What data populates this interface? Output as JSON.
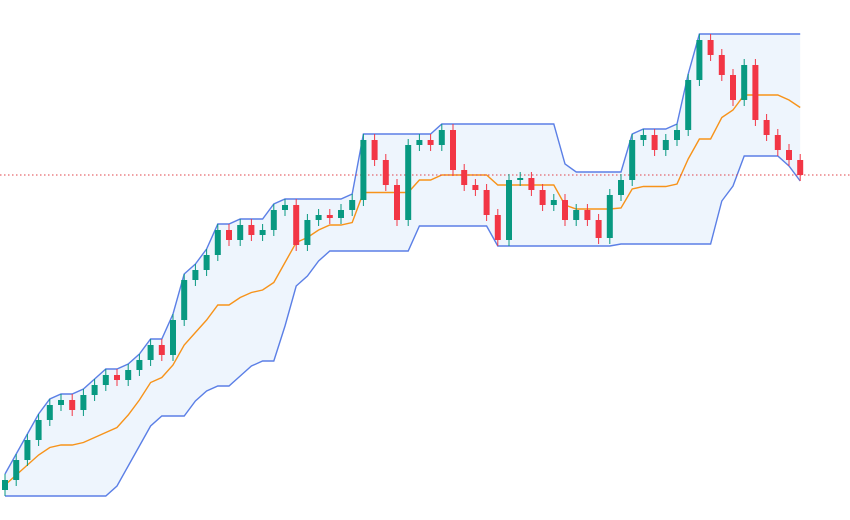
{
  "chart_data": {
    "type": "candlestick",
    "ylim": [
      0,
      520
    ],
    "open": [
      30,
      40,
      60,
      80,
      100,
      115,
      120,
      110,
      125,
      135,
      145,
      140,
      150,
      160,
      175,
      165,
      200,
      240,
      250,
      265,
      290,
      280,
      295,
      285,
      290,
      310,
      315,
      275,
      300,
      305,
      302,
      310,
      320,
      380,
      360,
      335,
      300,
      375,
      380,
      375,
      390,
      350,
      335,
      330,
      305,
      280,
      340,
      342,
      330,
      315,
      320,
      300,
      310,
      300,
      282,
      325,
      340,
      380,
      385,
      370,
      380,
      390,
      440,
      480,
      465,
      445,
      420,
      455,
      400,
      385,
      370,
      360
    ],
    "high": [
      46,
      66,
      86,
      106,
      121,
      126,
      126,
      131,
      141,
      151,
      151,
      156,
      166,
      181,
      181,
      206,
      246,
      256,
      271,
      296,
      296,
      301,
      301,
      296,
      316,
      321,
      321,
      306,
      311,
      311,
      316,
      326,
      386,
      386,
      366,
      341,
      381,
      386,
      386,
      396,
      396,
      356,
      341,
      336,
      311,
      346,
      348,
      348,
      336,
      326,
      326,
      316,
      316,
      306,
      331,
      346,
      386,
      391,
      391,
      386,
      396,
      446,
      486,
      486,
      471,
      451,
      461,
      461,
      406,
      391,
      376,
      366
    ],
    "low": [
      24,
      34,
      54,
      74,
      94,
      109,
      104,
      104,
      119,
      129,
      134,
      134,
      144,
      154,
      159,
      159,
      194,
      234,
      244,
      259,
      274,
      274,
      279,
      279,
      284,
      304,
      269,
      269,
      294,
      296,
      296,
      304,
      314,
      354,
      329,
      294,
      294,
      369,
      369,
      369,
      344,
      329,
      324,
      299,
      274,
      274,
      334,
      324,
      309,
      309,
      294,
      294,
      294,
      276,
      276,
      319,
      334,
      374,
      364,
      364,
      374,
      384,
      434,
      459,
      439,
      414,
      414,
      394,
      379,
      364,
      354,
      339
    ],
    "close": [
      40,
      60,
      80,
      100,
      115,
      120,
      110,
      125,
      135,
      145,
      140,
      150,
      160,
      175,
      165,
      200,
      240,
      250,
      265,
      290,
      280,
      295,
      285,
      290,
      310,
      315,
      275,
      300,
      305,
      302,
      310,
      320,
      380,
      360,
      335,
      300,
      375,
      380,
      375,
      390,
      350,
      335,
      330,
      305,
      280,
      340,
      342,
      330,
      315,
      320,
      300,
      310,
      300,
      282,
      325,
      340,
      380,
      385,
      370,
      380,
      390,
      440,
      480,
      465,
      445,
      420,
      455,
      400,
      385,
      370,
      360,
      345
    ],
    "upper": [
      46,
      66,
      86,
      106,
      121,
      126,
      126,
      131,
      141,
      151,
      151,
      156,
      166,
      181,
      181,
      206,
      246,
      256,
      271,
      296,
      296,
      301,
      301,
      301,
      316,
      321,
      321,
      321,
      321,
      321,
      321,
      326,
      386,
      386,
      386,
      386,
      386,
      386,
      386,
      396,
      396,
      396,
      396,
      396,
      396,
      396,
      396,
      396,
      396,
      396,
      356,
      348,
      348,
      348,
      348,
      348,
      386,
      391,
      391,
      391,
      396,
      446,
      486,
      486,
      486,
      486,
      486,
      486,
      486,
      486,
      486,
      486
    ],
    "lower": [
      24,
      24,
      24,
      24,
      24,
      24,
      24,
      24,
      24,
      24,
      34,
      54,
      74,
      94,
      104,
      104,
      104,
      119,
      129,
      134,
      134,
      144,
      154,
      159,
      159,
      194,
      234,
      244,
      259,
      269,
      269,
      269,
      269,
      269,
      269,
      269,
      269,
      294,
      294,
      294,
      294,
      294,
      294,
      294,
      274,
      274,
      274,
      274,
      274,
      274,
      274,
      274,
      274,
      274,
      274,
      276,
      276,
      276,
      276,
      276,
      276,
      276,
      276,
      276,
      319,
      334,
      364,
      364,
      364,
      364,
      354,
      339
    ],
    "middle": [
      35,
      45,
      55,
      65,
      72.5,
      75,
      75,
      77.5,
      82.5,
      87.5,
      92.5,
      105,
      120,
      137.5,
      142.5,
      155,
      175,
      187.5,
      200,
      215,
      215,
      222.5,
      227.5,
      230,
      237.5,
      257.5,
      277.5,
      282.5,
      290,
      295,
      295,
      297.5,
      327.5,
      327.5,
      327.5,
      327.5,
      327.5,
      340,
      340,
      345,
      345,
      345,
      345,
      345,
      335,
      335,
      335,
      335,
      335,
      335,
      315,
      311,
      311,
      311,
      311,
      312,
      331,
      333.5,
      333.5,
      333.5,
      336,
      361,
      381,
      381,
      402.5,
      410,
      425,
      425,
      425,
      425,
      420,
      412.5
    ],
    "price_line": 345,
    "up_color": "#089981",
    "down_color": "#f23645",
    "channel_color": "#5b7fe6",
    "middle_color": "#f7931a",
    "fill_color": "#eef5fd",
    "price_line_color": "#e0434a"
  }
}
